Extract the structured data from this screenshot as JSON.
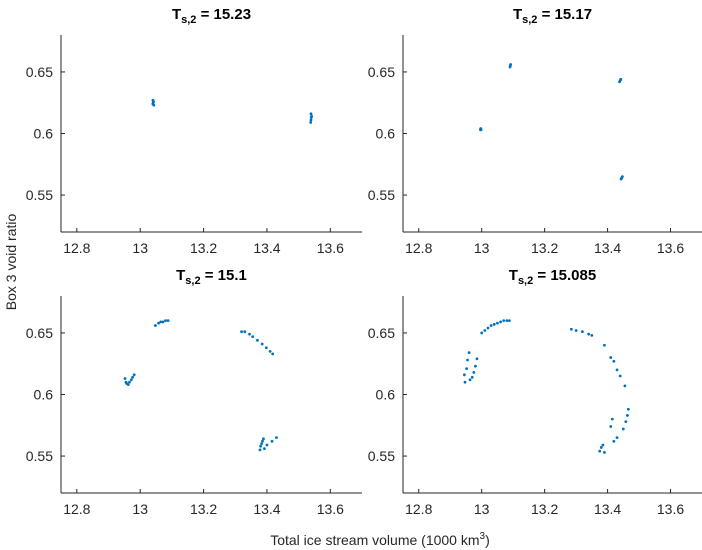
{
  "figure": {
    "xlabel_prefix": "Total ice stream volume (1000 km",
    "xlabel_sup": "3",
    "xlabel_suffix": ")",
    "ylabel": "Box 3 void ratio"
  },
  "chart_data": [
    {
      "type": "scatter",
      "title_main": "T",
      "title_sub": "s,2",
      "title_value": " = 15.23",
      "xlim": [
        12.75,
        13.7
      ],
      "ylim": [
        0.52,
        0.68
      ],
      "xticks": [
        12.8,
        13,
        13.2,
        13.4,
        13.6
      ],
      "xtick_labels": [
        "12.8",
        "13",
        "13.2",
        "13.4",
        "13.6"
      ],
      "yticks": [
        0.55,
        0.6,
        0.65
      ],
      "ytick_labels": [
        "0.55",
        "0.6",
        "0.65"
      ],
      "marker_color": "#0072bd",
      "points": [
        [
          13.04,
          0.624
        ],
        [
          13.041,
          0.625
        ],
        [
          13.042,
          0.626
        ],
        [
          13.04,
          0.627
        ],
        [
          13.043,
          0.623
        ],
        [
          13.538,
          0.609
        ],
        [
          13.539,
          0.611
        ],
        [
          13.54,
          0.613
        ],
        [
          13.541,
          0.614
        ],
        [
          13.539,
          0.616
        ]
      ]
    },
    {
      "type": "scatter",
      "title_main": "T",
      "title_sub": "s,2",
      "title_value": " = 15.17",
      "xlim": [
        12.75,
        13.7
      ],
      "ylim": [
        0.52,
        0.68
      ],
      "xticks": [
        12.8,
        13,
        13.2,
        13.4,
        13.6
      ],
      "xtick_labels": [
        "12.8",
        "13",
        "13.2",
        "13.4",
        "13.6"
      ],
      "yticks": [
        0.55,
        0.6,
        0.65
      ],
      "ytick_labels": [
        "0.55",
        "0.6",
        "0.65"
      ],
      "marker_color": "#0072bd",
      "points": [
        [
          13.09,
          0.654
        ],
        [
          13.091,
          0.655
        ],
        [
          13.092,
          0.656
        ],
        [
          12.996,
          0.603
        ],
        [
          12.997,
          0.604
        ],
        [
          12.998,
          0.603
        ],
        [
          13.438,
          0.642
        ],
        [
          13.44,
          0.643
        ],
        [
          13.442,
          0.644
        ],
        [
          13.443,
          0.563
        ],
        [
          13.445,
          0.564
        ],
        [
          13.447,
          0.565
        ]
      ]
    },
    {
      "type": "scatter",
      "title_main": "T",
      "title_sub": "s,2",
      "title_value": " = 15.1",
      "xlim": [
        12.75,
        13.7
      ],
      "ylim": [
        0.52,
        0.68
      ],
      "xticks": [
        12.8,
        13,
        13.2,
        13.4,
        13.6
      ],
      "xtick_labels": [
        "12.8",
        "13",
        "13.2",
        "13.4",
        "13.6"
      ],
      "yticks": [
        0.55,
        0.6,
        0.65
      ],
      "ytick_labels": [
        "0.55",
        "0.6",
        "0.65"
      ],
      "marker_color": "#0072bd",
      "points": [
        [
          12.952,
          0.613
        ],
        [
          12.957,
          0.609
        ],
        [
          12.962,
          0.608
        ],
        [
          12.966,
          0.61
        ],
        [
          12.972,
          0.612
        ],
        [
          12.976,
          0.614
        ],
        [
          12.981,
          0.616
        ],
        [
          12.955,
          0.61
        ],
        [
          13.048,
          0.656
        ],
        [
          13.058,
          0.658
        ],
        [
          13.065,
          0.659
        ],
        [
          13.072,
          0.659
        ],
        [
          13.08,
          0.66
        ],
        [
          13.088,
          0.66
        ],
        [
          13.32,
          0.651
        ],
        [
          13.33,
          0.651
        ],
        [
          13.345,
          0.649
        ],
        [
          13.355,
          0.647
        ],
        [
          13.37,
          0.644
        ],
        [
          13.385,
          0.641
        ],
        [
          13.398,
          0.638
        ],
        [
          13.41,
          0.635
        ],
        [
          13.418,
          0.633
        ],
        [
          13.378,
          0.555
        ],
        [
          13.38,
          0.558
        ],
        [
          13.383,
          0.56
        ],
        [
          13.386,
          0.562
        ],
        [
          13.389,
          0.564
        ],
        [
          13.392,
          0.556
        ],
        [
          13.4,
          0.559
        ],
        [
          13.416,
          0.562
        ],
        [
          13.43,
          0.565
        ]
      ]
    },
    {
      "type": "scatter",
      "title_main": "T",
      "title_sub": "s,2",
      "title_value": " = 15.085",
      "xlim": [
        12.75,
        13.7
      ],
      "ylim": [
        0.52,
        0.68
      ],
      "xticks": [
        12.8,
        13,
        13.2,
        13.4,
        13.6
      ],
      "xtick_labels": [
        "12.8",
        "13",
        "13.2",
        "13.4",
        "13.6"
      ],
      "yticks": [
        0.55,
        0.6,
        0.65
      ],
      "ytick_labels": [
        "0.55",
        "0.6",
        "0.65"
      ],
      "marker_color": "#0072bd",
      "points": [
        [
          12.945,
          0.616
        ],
        [
          12.947,
          0.61
        ],
        [
          12.952,
          0.621
        ],
        [
          12.955,
          0.628
        ],
        [
          12.96,
          0.634
        ],
        [
          12.963,
          0.612
        ],
        [
          12.97,
          0.614
        ],
        [
          12.975,
          0.618
        ],
        [
          12.98,
          0.623
        ],
        [
          12.985,
          0.629
        ],
        [
          13.0,
          0.65
        ],
        [
          13.01,
          0.652
        ],
        [
          13.02,
          0.654
        ],
        [
          13.03,
          0.656
        ],
        [
          13.04,
          0.657
        ],
        [
          13.05,
          0.658
        ],
        [
          13.06,
          0.659
        ],
        [
          13.07,
          0.66
        ],
        [
          13.08,
          0.66
        ],
        [
          13.088,
          0.66
        ],
        [
          13.285,
          0.653
        ],
        [
          13.3,
          0.652
        ],
        [
          13.32,
          0.651
        ],
        [
          13.34,
          0.649
        ],
        [
          13.35,
          0.648
        ],
        [
          13.39,
          0.64
        ],
        [
          13.41,
          0.63
        ],
        [
          13.42,
          0.627
        ],
        [
          13.43,
          0.62
        ],
        [
          13.44,
          0.615
        ],
        [
          13.455,
          0.607
        ],
        [
          13.375,
          0.554
        ],
        [
          13.38,
          0.557
        ],
        [
          13.385,
          0.559
        ],
        [
          13.39,
          0.553
        ],
        [
          13.41,
          0.574
        ],
        [
          13.415,
          0.58
        ],
        [
          13.42,
          0.562
        ],
        [
          13.43,
          0.565
        ],
        [
          13.45,
          0.572
        ],
        [
          13.458,
          0.578
        ],
        [
          13.463,
          0.583
        ],
        [
          13.466,
          0.588
        ]
      ]
    }
  ]
}
